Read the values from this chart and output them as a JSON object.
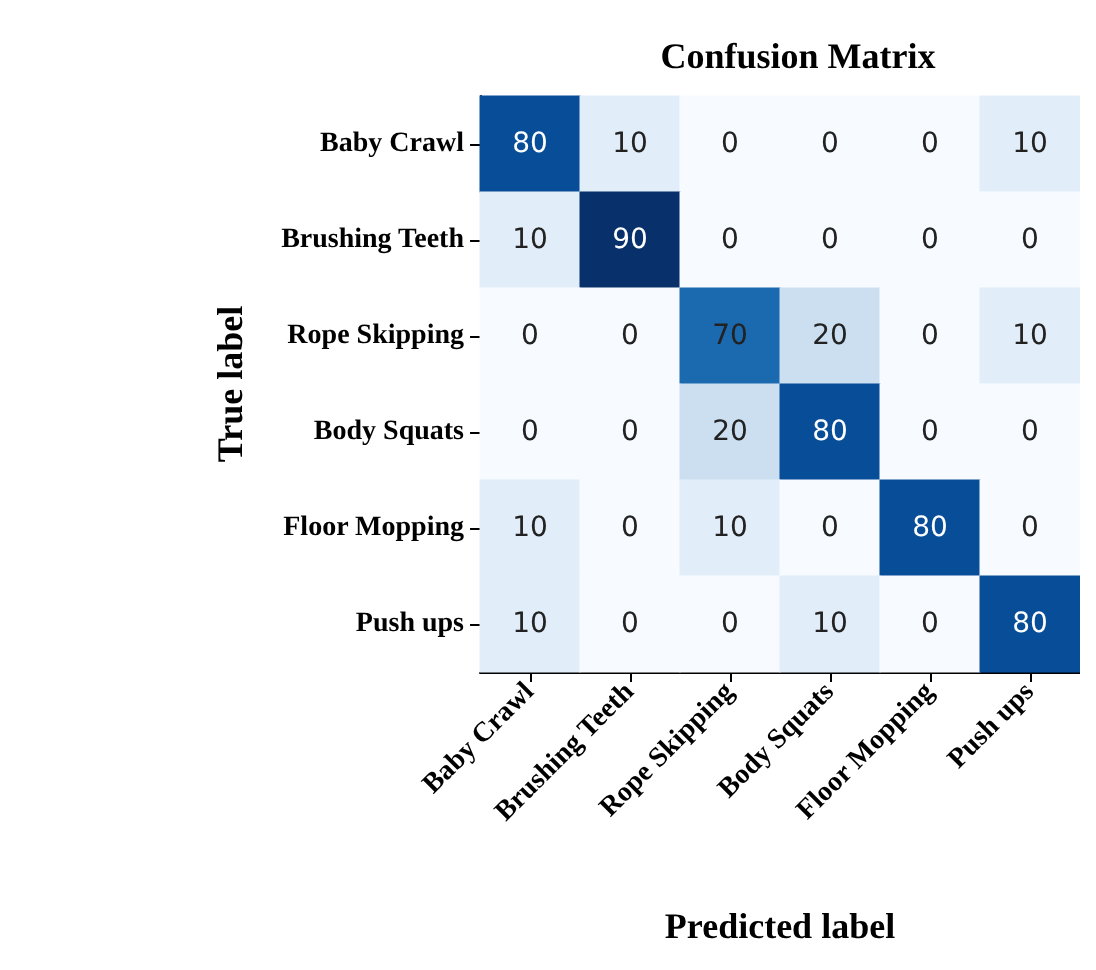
{
  "chart_data": {
    "type": "heatmap",
    "title": "Confusion Matrix",
    "xlabel": "Predicted label",
    "ylabel": "True label",
    "categories": [
      "Baby Crawl",
      "Brushing Teeth",
      "Rope Skipping",
      "Body Squats",
      "Floor Mopping",
      "Push ups"
    ],
    "y_categories": [
      "Baby Crawl",
      "Brushing Teeth",
      "Rope Skipping",
      "Body Squats",
      "Floor Mopping",
      "Push ups"
    ],
    "cells": [
      [
        80,
        10,
        0,
        0,
        0,
        10
      ],
      [
        10,
        90,
        0,
        0,
        0,
        0
      ],
      [
        0,
        0,
        70,
        20,
        0,
        10
      ],
      [
        0,
        0,
        20,
        80,
        0,
        0
      ],
      [
        10,
        0,
        10,
        0,
        80,
        0
      ],
      [
        10,
        0,
        0,
        10,
        0,
        80
      ]
    ],
    "data_labels": true
  }
}
